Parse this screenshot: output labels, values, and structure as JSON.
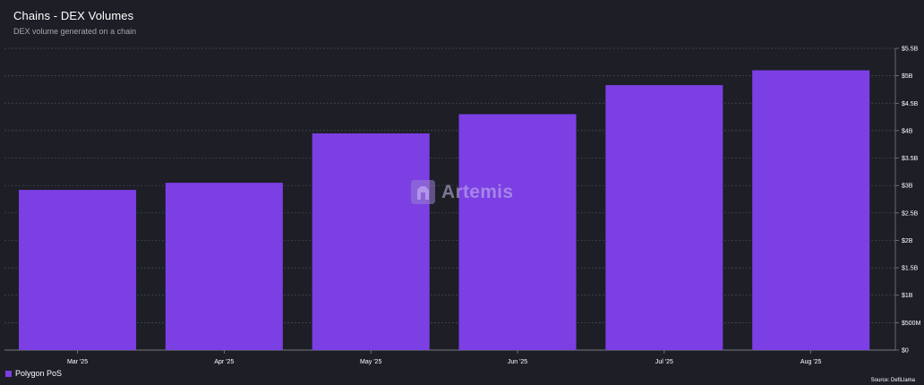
{
  "header": {
    "title": "Chains - DEX Volumes",
    "subtitle": "DEX volume generated on a chain"
  },
  "watermark": {
    "text": "Artemis",
    "icon": "artemis-logo-icon"
  },
  "legend": {
    "label": "Polygon PoS",
    "color": "#7b3fe4"
  },
  "source": "Source: DefiLlama",
  "colors": {
    "background": "#1d1e26",
    "bar": "#7b3fe4",
    "grid": "#4a4c58",
    "text": "#ffffff"
  },
  "chart_data": {
    "type": "bar",
    "title": "Chains - DEX Volumes",
    "subtitle": "DEX volume generated on a chain",
    "categories": [
      "Mar '25",
      "Apr '25",
      "May '25",
      "Jun '25",
      "Jul '25",
      "Aug '25"
    ],
    "series": [
      {
        "name": "Polygon PoS",
        "values": [
          2.92,
          3.05,
          3.95,
          4.3,
          4.83,
          5.1
        ]
      }
    ],
    "units": "USD billions",
    "ylim": [
      0,
      5.5
    ],
    "yticks": [
      0,
      0.5,
      1,
      1.5,
      2,
      2.5,
      3,
      3.5,
      4,
      4.5,
      5,
      5.5
    ],
    "ytick_labels": [
      "$0",
      "$500M",
      "$1B",
      "$1.5B",
      "$2B",
      "$2.5B",
      "$3B",
      "$3.5B",
      "$4B",
      "$4.5B",
      "$5B",
      "$5.5B"
    ],
    "y_axis_side": "right",
    "grid": "horizontal dashed",
    "legend_position": "bottom-left"
  }
}
